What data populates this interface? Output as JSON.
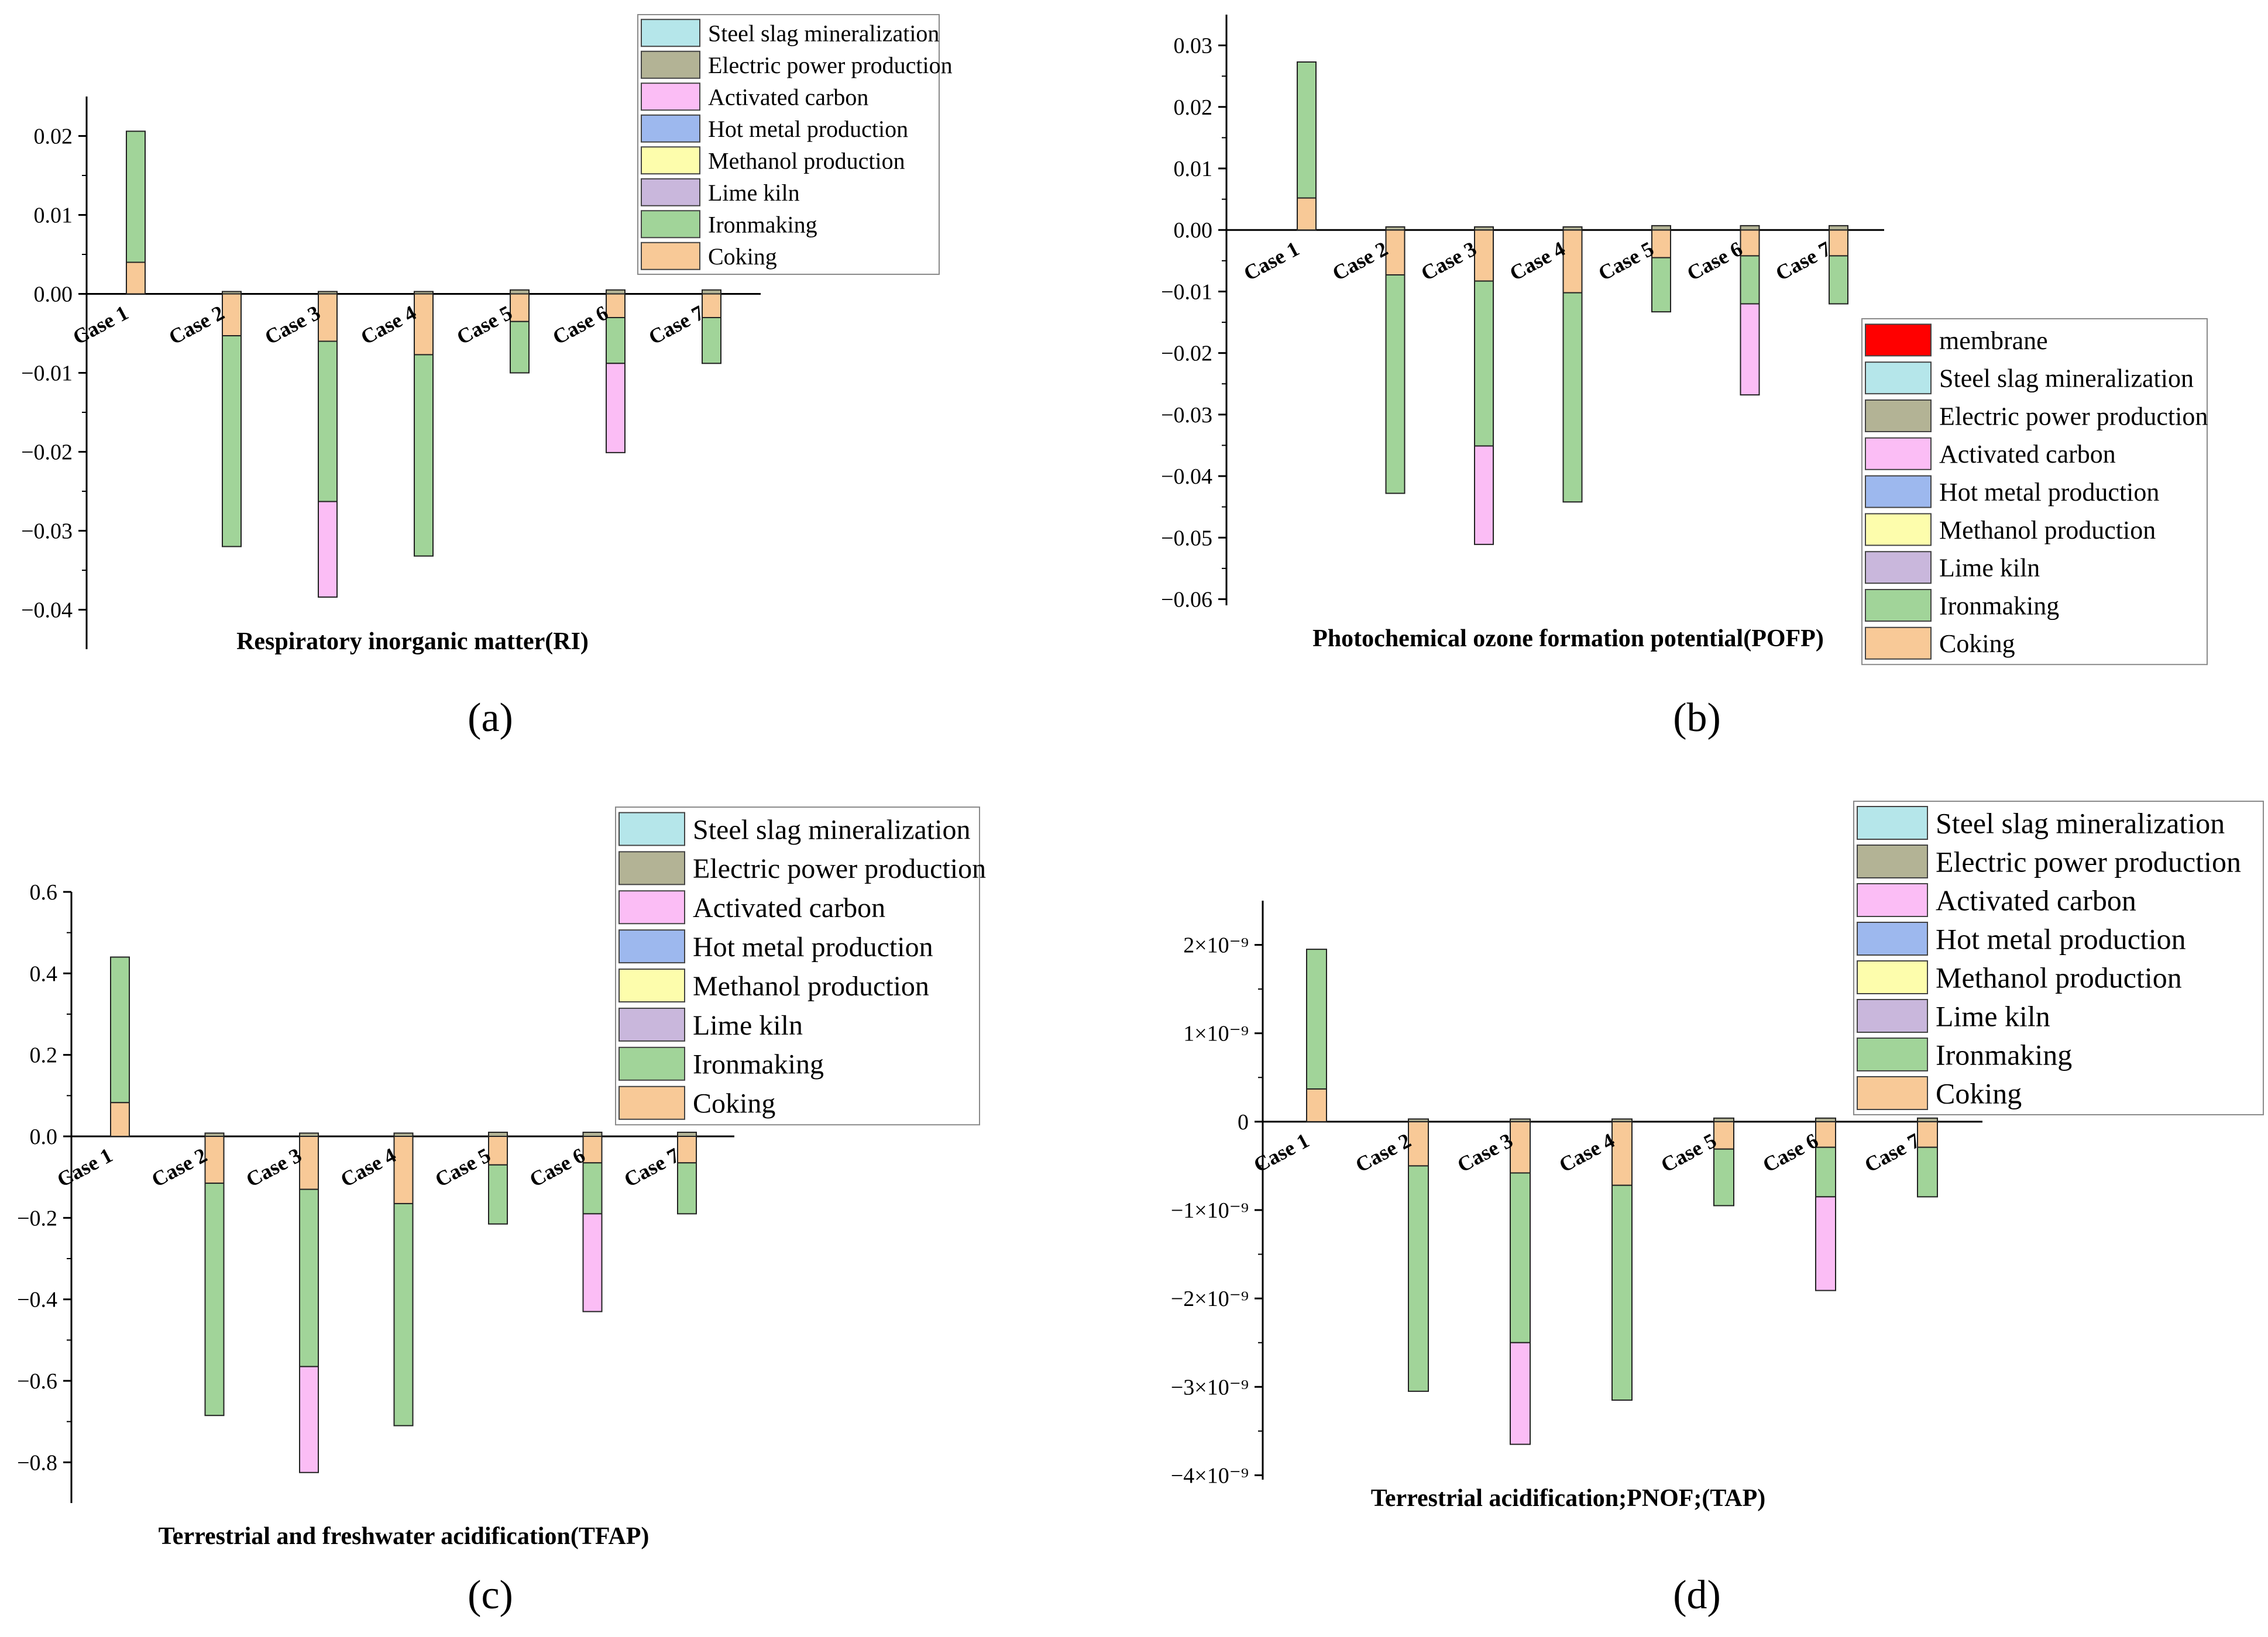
{
  "figure": {
    "stack_order": [
      "Coking",
      "Ironmaking",
      "Lime kiln",
      "Methanol production",
      "Hot metal production",
      "Activated carbon",
      "Electric power production",
      "Steel slag mineralization",
      "membrane"
    ],
    "colors": {
      "membrane": "#ff0000",
      "Steel slag mineralization": "#b5e6ea",
      "Electric power production": "#b3b395",
      "Activated carbon": "#fbbdf5",
      "Hot metal production": "#9db8ee",
      "Methanol production": "#fdfdac",
      "Lime kiln": "#c9b7dc",
      "Ironmaking": "#a1d499",
      "Coking": "#f8c997"
    }
  },
  "chart_data": [
    {
      "id": "a",
      "type": "bar",
      "stacked": true,
      "panel_label": "(a)",
      "title": "Respiratory inorganic matter(RI)",
      "xlabel": "",
      "ylabel": "",
      "categories": [
        "Case 1",
        "Case 2",
        "Case 3",
        "Case 4",
        "Case 5",
        "Case 6",
        "Case 7"
      ],
      "ylim": [
        -0.045,
        0.025
      ],
      "yticks": [
        -0.04,
        -0.03,
        -0.02,
        -0.01,
        0.0,
        0.01,
        0.02
      ],
      "ytick_labels": [
        "−0.04",
        "−0.03",
        "−0.02",
        "−0.01",
        "0.00",
        "0.01",
        "0.02"
      ],
      "legend_position": "top-right",
      "legend": [
        "Steel slag mineralization",
        "Electric power production",
        "Activated carbon",
        "Hot metal production",
        "Methanol production",
        "Lime kiln",
        "Ironmaking",
        "Coking"
      ],
      "series": [
        {
          "name": "Coking",
          "values": [
            0.004,
            -0.0053,
            -0.006,
            -0.0077,
            -0.0035,
            -0.003,
            -0.003
          ]
        },
        {
          "name": "Ironmaking",
          "values": [
            0.0166,
            -0.0267,
            -0.0203,
            -0.0255,
            -0.0065,
            -0.0058,
            -0.0058
          ]
        },
        {
          "name": "Activated carbon",
          "values": [
            0,
            0,
            -0.0121,
            0,
            0,
            -0.0113,
            0
          ]
        },
        {
          "name": "Electric power production",
          "values": [
            0,
            0.0003,
            0.0003,
            0.0003,
            0.0005,
            0.0005,
            0.0005
          ]
        }
      ]
    },
    {
      "id": "b",
      "type": "bar",
      "stacked": true,
      "panel_label": "(b)",
      "title": "Photochemical ozone formation potential(POFP)",
      "xlabel": "",
      "ylabel": "",
      "categories": [
        "Case 1",
        "Case 2",
        "Case 3",
        "Case 4",
        "Case 5",
        "Case 6",
        "Case 7"
      ],
      "ylim": [
        -0.061,
        0.035
      ],
      "yticks": [
        -0.06,
        -0.05,
        -0.04,
        -0.03,
        -0.02,
        -0.01,
        0.0,
        0.01,
        0.02,
        0.03
      ],
      "ytick_labels": [
        "−0.06",
        "−0.05",
        "−0.04",
        "−0.03",
        "−0.02",
        "−0.01",
        "0.00",
        "0.01",
        "0.02",
        "0.03"
      ],
      "legend_position": "lower-right",
      "legend": [
        "membrane",
        "Steel slag mineralization",
        "Electric power production",
        "Activated carbon",
        "Hot metal production",
        "Methanol production",
        "Lime kiln",
        "Ironmaking",
        "Coking"
      ],
      "series": [
        {
          "name": "Coking",
          "values": [
            0.0052,
            -0.0073,
            -0.0083,
            -0.0102,
            -0.0045,
            -0.0042,
            -0.0042
          ]
        },
        {
          "name": "Ironmaking",
          "values": [
            0.0221,
            -0.0355,
            -0.0268,
            -0.034,
            -0.0088,
            -0.0078,
            -0.0078
          ]
        },
        {
          "name": "Activated carbon",
          "values": [
            0,
            0,
            -0.016,
            0,
            0,
            -0.0148,
            0
          ]
        },
        {
          "name": "Electric power production",
          "values": [
            0,
            0.0005,
            0.0005,
            0.0005,
            0.0007,
            0.0007,
            0.0007
          ]
        }
      ]
    },
    {
      "id": "c",
      "type": "bar",
      "stacked": true,
      "panel_label": "(c)",
      "title": "Terrestrial and freshwater acidification(TFAP)",
      "xlabel": "",
      "ylabel": "",
      "categories": [
        "Case 1",
        "Case 2",
        "Case 3",
        "Case 4",
        "Case 5",
        "Case 6",
        "Case 7"
      ],
      "ylim": [
        -0.9,
        0.6
      ],
      "yticks": [
        -0.8,
        -0.6,
        -0.4,
        -0.2,
        0.0,
        0.2,
        0.4,
        0.6
      ],
      "ytick_labels": [
        "−0.8",
        "−0.6",
        "−0.4",
        "−0.2",
        "0.0",
        "0.2",
        "0.4",
        "0.6"
      ],
      "legend_position": "top-right",
      "legend": [
        "Steel slag mineralization",
        "Electric power production",
        "Activated carbon",
        "Hot metal production",
        "Methanol production",
        "Lime kiln",
        "Ironmaking",
        "Coking"
      ],
      "series": [
        {
          "name": "Coking",
          "values": [
            0.083,
            -0.115,
            -0.13,
            -0.165,
            -0.07,
            -0.065,
            -0.065
          ]
        },
        {
          "name": "Ironmaking",
          "values": [
            0.357,
            -0.57,
            -0.435,
            -0.545,
            -0.145,
            -0.125,
            -0.125
          ]
        },
        {
          "name": "Activated carbon",
          "values": [
            0,
            0,
            -0.26,
            0,
            0,
            -0.24,
            0
          ]
        },
        {
          "name": "Electric power production",
          "values": [
            0,
            0.008,
            0.008,
            0.008,
            0.01,
            0.01,
            0.01
          ]
        }
      ]
    },
    {
      "id": "d",
      "type": "bar",
      "stacked": true,
      "panel_label": "(d)",
      "title": "Terrestrial acidification;PNOF;(TAP)",
      "xlabel": "",
      "ylabel": "",
      "categories": [
        "Case 1",
        "Case 2",
        "Case 3",
        "Case 4",
        "Case 5",
        "Case 6",
        "Case 7"
      ],
      "ylim": [
        -4.05e-09,
        2.5e-09
      ],
      "yticks": [
        -4e-09,
        -3e-09,
        -2e-09,
        -1e-09,
        0,
        1e-09,
        2e-09
      ],
      "ytick_labels": [
        "−4×10⁻⁹",
        "−3×10⁻⁹",
        "−2×10⁻⁹",
        "−1×10⁻⁹",
        "0",
        "1×10⁻⁹",
        "2×10⁻⁹"
      ],
      "legend_position": "top-right",
      "legend": [
        "Steel slag mineralization",
        "Electric power production",
        "Activated carbon",
        "Hot metal production",
        "Methanol production",
        "Lime kiln",
        "Ironmaking",
        "Coking"
      ],
      "series": [
        {
          "name": "Coking",
          "values": [
            3.7e-10,
            -5e-10,
            -5.8e-10,
            -7.2e-10,
            -3.1e-10,
            -2.9e-10,
            -2.9e-10
          ]
        },
        {
          "name": "Ironmaking",
          "values": [
            1.58e-09,
            -2.55e-09,
            -1.92e-09,
            -2.43e-09,
            -6.4e-10,
            -5.6e-10,
            -5.6e-10
          ]
        },
        {
          "name": "Activated carbon",
          "values": [
            0,
            0,
            -1.15e-09,
            0,
            0,
            -1.06e-09,
            0
          ]
        },
        {
          "name": "Electric power production",
          "values": [
            0,
            3e-11,
            3e-11,
            3e-11,
            4e-11,
            4e-11,
            4e-11
          ]
        }
      ]
    }
  ]
}
